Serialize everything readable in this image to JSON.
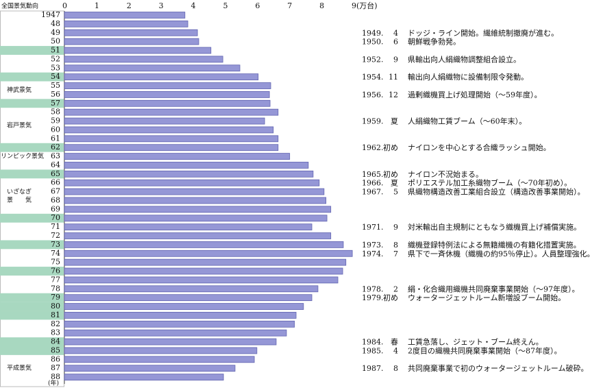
{
  "chart_data": {
    "type": "bar",
    "orientation": "horizontal",
    "left_header": "全国景気動向",
    "category_axis_label": "(年)",
    "categories": [
      "1947",
      "48",
      "49",
      "50",
      "51",
      "52",
      "53",
      "54",
      "55",
      "56",
      "57",
      "58",
      "59",
      "60",
      "61",
      "62",
      "63",
      "64",
      "65",
      "66",
      "67",
      "68",
      "69",
      "70",
      "71",
      "72",
      "73",
      "74",
      "75",
      "76",
      "77",
      "78",
      "79",
      "80",
      "81",
      "82",
      "83",
      "84",
      "85",
      "86",
      "87",
      "88"
    ],
    "values": [
      3.75,
      3.84,
      4.14,
      4.18,
      4.56,
      4.93,
      5.46,
      6.03,
      6.42,
      6.38,
      6.4,
      6.65,
      6.23,
      6.5,
      6.65,
      6.65,
      7.01,
      7.59,
      7.74,
      7.93,
      8.08,
      8.14,
      8.29,
      8.17,
      7.7,
      8.29,
      8.68,
      8.96,
      8.76,
      8.66,
      8.51,
      7.89,
      7.7,
      7.44,
      7.21,
      7.16,
      6.91,
      6.59,
      5.99,
      5.91,
      5.31,
      4.95
    ],
    "color": "#9597d6",
    "xlim": [
      0,
      9
    ],
    "xticks": [
      0,
      1,
      2,
      3,
      4,
      5,
      6,
      7,
      8,
      {
        "value": 9,
        "label": "9(万台)"
      }
    ],
    "shade_color": "#a8d8c0",
    "shaded_categories": [
      "51",
      "54",
      "57",
      "62",
      "65",
      "70",
      "73",
      "76",
      "79",
      "80",
      "81",
      "84",
      "85"
    ],
    "booms": [
      {
        "lines": [
          "神武景気"
        ],
        "from": "54",
        "to": "57"
      },
      {
        "lines": [
          "岩戸景気"
        ],
        "from": "58",
        "to": "61"
      },
      {
        "lines": [
          "オリンピック景気"
        ],
        "from": "62",
        "to": "64"
      },
      {
        "lines": [
          "いざなぎ",
          "景　　気"
        ],
        "from": "65",
        "to": "70"
      },
      {
        "lines": [
          "平成景気"
        ],
        "from": "86",
        "to": "88"
      }
    ],
    "annotations": [
      {
        "category": "49",
        "year": "1949.",
        "month": "4",
        "text": "ドッジ・ライン開始。繊維統制撤廃が進む。"
      },
      {
        "category": "50",
        "year": "1950.",
        "month": "6",
        "text": "朝鮮戦争勃発。"
      },
      {
        "category": "52",
        "year": "1952.",
        "month": "9",
        "text": "県輸出向人絹織物調整組合設立。"
      },
      {
        "category": "54",
        "year": "1954.",
        "month": "11",
        "text": "輸出向人絹織物に設備制限令発動。"
      },
      {
        "category": "56",
        "year": "1956.",
        "month": "12",
        "text": "過剰織機買上げ処理開始（～59年度）。"
      },
      {
        "category": "59",
        "year": "1959.",
        "month": "夏",
        "text": "人絹織物工賃ブーム（～60年末）。"
      },
      {
        "category": "62",
        "year": "1962.",
        "month": "初め",
        "text": "ナイロンを中心とする合織ラッシュ開始。"
      },
      {
        "category": "65",
        "year": "1965.",
        "month": "初め",
        "text": "ナイロン不況始まる。"
      },
      {
        "category": "66",
        "year": "1966.",
        "month": "夏",
        "text": "ポリエステル加工糸織物ブーム（～70年初め）。"
      },
      {
        "category": "67",
        "year": "1967.",
        "month": "5",
        "text": "県織物構造改善工業組合設立（構造改善事業開始）。"
      },
      {
        "category": "71",
        "year": "1971.",
        "month": "9",
        "text": "対米輸出自主規制にともなう織機買上げ補償実施。"
      },
      {
        "category": "73",
        "year": "1973.",
        "month": "8",
        "text": "織機登録特例法による無籍織機の有籍化措置実施。"
      },
      {
        "category": "74",
        "year": "1974.",
        "month": "7",
        "text": "県下で一斉休機（織機の約95％停止）。人員整理強化。"
      },
      {
        "category": "78",
        "year": "1978.",
        "month": "2",
        "text": "絹・化合織用織機共同廃棄事業開始（～97年度）。"
      },
      {
        "category": "79",
        "year": "1979.",
        "month": "初め",
        "text": "ウォータージェットルーム新増設ブーム開始。"
      },
      {
        "category": "84",
        "year": "1984.",
        "month": "春",
        "text": "工賃急落し、ジェット・ブーム終えん。"
      },
      {
        "category": "85",
        "year": "1985.",
        "month": "4",
        "text": "2度目の織機共同廃棄事業開始（～87年度）。"
      },
      {
        "category": "87",
        "year": "1987.",
        "month": "8",
        "text": "共同廃棄事業で初のウォータージェットルーム破砕。"
      }
    ]
  }
}
